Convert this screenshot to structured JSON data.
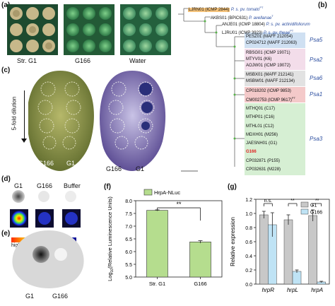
{
  "panel_labels": {
    "a": "(a)",
    "b": "(b)",
    "c": "(c)",
    "d": "(d)",
    "e": "(e)",
    "f": "(f)",
    "g": "(g)"
  },
  "panel_a": {
    "captions": [
      "Str. G1",
      "G166",
      "Water"
    ]
  },
  "panel_b": {
    "top_taxa": [
      {
        "strain": "LJRN01 (ICMP 2844)",
        "species": "P. s. pv. tomato",
        "sup": "PT",
        "highlight": "#f4c27a"
      },
      {
        "strain": "AKBS01 (BPIC631)",
        "species": "P. avellanae",
        "sup": "T",
        "highlight": ""
      },
      {
        "strain": "ANJE01 (ICMP 18804)",
        "species": "P. s. pv. actinidifoliorum",
        "sup": "",
        "highlight": ""
      },
      {
        "strain": "LJRU01 (ICMP 3923)",
        "species": "P. s. pv. theae",
        "sup": "PT",
        "highlight": ""
      }
    ],
    "clades": [
      {
        "name": "Psa5",
        "color": "#cfe0f2",
        "leaves": [
          "PESZ01 (MAFF 212054)",
          "CP024712 (MAFF 212063)"
        ]
      },
      {
        "name": "Psa2",
        "color": "#f3ddea",
        "leaves": [
          "RBSG01 (ICMP 19071)",
          "MTYV01 (K6)",
          "AOJW01 (ICMP 19072)"
        ]
      },
      {
        "name": "Psa6",
        "color": "#e2e2e2",
        "leaves": [
          "MSBX01 (MAFF 212141)",
          "MSBW01 (MAFF 212134)"
        ]
      },
      {
        "name": "Psa1",
        "color": "#f4c9c9",
        "leaves": [
          "CP018202 (ICMP 9853)",
          "CM002753 (ICMP 9617)"
        ]
      },
      {
        "name": "Psa3",
        "color": "#d6efd3",
        "leaves": [
          "MTHQ01 (C17)",
          "MTHP01 (C16)",
          "MTHL01 (C12)",
          "MDXH01 (M256)",
          "JAESNH01 (G1)",
          "G166",
          "CP032871 (P155)",
          "CP032631 (M228)"
        ]
      }
    ],
    "psa1_sup": "PT",
    "highlight_leaf": "G166"
  },
  "panel_c": {
    "dilution_label": "5-fold dilution",
    "captions": [
      "G166",
      "G1",
      "G166",
      "G1"
    ]
  },
  "panel_d": {
    "columns": [
      "G1",
      "G166",
      "Buffer"
    ],
    "scale_low": "low",
    "scale_high": "high"
  },
  "panel_e": {
    "captions": [
      "G1",
      "G166"
    ]
  },
  "panel_f": {
    "chart_data": {
      "type": "bar",
      "categories": [
        "Str. G1",
        "G166"
      ],
      "series": [
        {
          "name": "HrpA-NLuc",
          "values": [
            7.62,
            6.38
          ],
          "errors": [
            0.02,
            0.05
          ],
          "color": "#b5dd8e"
        }
      ],
      "ylabel": "Log10(Relative Luminescence Units)",
      "ylim": [
        5.0,
        8.0
      ],
      "yticks": [
        "5.0",
        "5.5",
        "6.0",
        "6.5",
        "7.0",
        "7.5",
        "8.0"
      ],
      "significance": "**",
      "legend": "top"
    }
  },
  "panel_g": {
    "chart_data": {
      "type": "bar",
      "categories": [
        "hrpR",
        "hrpL",
        "hrpA"
      ],
      "series": [
        {
          "name": "G1",
          "values": [
            0.98,
            0.91,
            0.97
          ],
          "errors": [
            0.05,
            0.07,
            0.08
          ],
          "color": "#c8c8c8"
        },
        {
          "name": "G166",
          "values": [
            0.84,
            0.18,
            0.03
          ],
          "errors": [
            0.17,
            0.02,
            0.01
          ],
          "color": "#bfe3f5"
        }
      ],
      "ylabel": "Relative expression",
      "ylim": [
        0.0,
        1.2
      ],
      "yticks": [
        "0.0",
        "0.2",
        "0.4",
        "0.6",
        "0.8",
        "1.0",
        "1.2"
      ],
      "significance": [
        "n.s.",
        "**",
        "**"
      ],
      "legend": "top-right"
    }
  }
}
